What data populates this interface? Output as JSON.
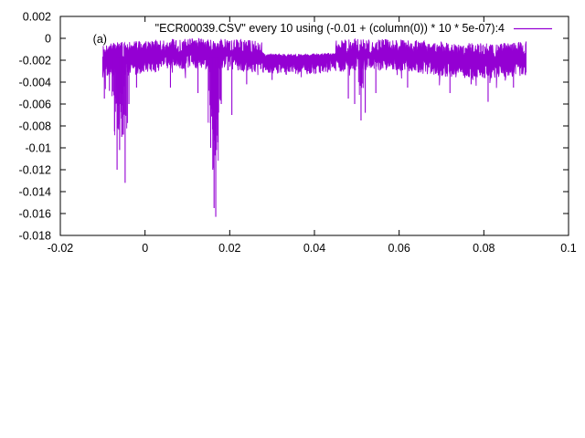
{
  "chart_data": {
    "type": "line",
    "title": "",
    "xlabel": "",
    "ylabel": "",
    "xlim": [
      -0.02,
      0.1
    ],
    "ylim": [
      -0.018,
      0.002
    ],
    "xticks": [
      -0.02,
      0,
      0.02,
      0.04,
      0.06,
      0.08,
      0.1
    ],
    "xtick_labels": [
      "-0.02",
      "0",
      "0.02",
      "0.04",
      "0.06",
      "0.08",
      "0.1"
    ],
    "yticks": [
      0.002,
      0,
      -0.002,
      -0.004,
      -0.006,
      -0.008,
      -0.01,
      -0.012,
      -0.014,
      -0.016,
      -0.018
    ],
    "ytick_labels": [
      "0.002",
      "0",
      "-0.002",
      "-0.004",
      "-0.006",
      "-0.008",
      "-0.01",
      "-0.012",
      "-0.014",
      "-0.016",
      "-0.018"
    ],
    "grid": false,
    "legend": {
      "placement": "top-right",
      "entries": [
        {
          "label": "\"ECR00039.CSV\" every 10 using (-0.01 + (column(0)) * 10 * 5e-07):4",
          "color": "#9400d3"
        }
      ]
    },
    "annotations": [
      {
        "text": "(a)",
        "x": -0.0123,
        "y": -4e-05
      }
    ],
    "series": [
      {
        "name": "\"ECR00039.CSV\" every 10 using (-0.01 + (column(0)) * 10 * 5e-07):4",
        "color": "#9400d3",
        "x_range": [
          -0.01,
          0.09
        ],
        "band_top": -0.0002,
        "band_bottom": -0.0032,
        "base_level": -0.0017,
        "spikes": [
          {
            "x": -0.0096,
            "y": -0.0055
          },
          {
            "x": -0.0084,
            "y": -0.0048
          },
          {
            "x": -0.0072,
            "y": -0.0085
          },
          {
            "x": -0.0066,
            "y": -0.012
          },
          {
            "x": -0.006,
            "y": -0.0102
          },
          {
            "x": -0.0055,
            "y": -0.009
          },
          {
            "x": -0.0047,
            "y": -0.0132
          },
          {
            "x": -0.0038,
            "y": -0.006
          },
          {
            "x": -0.002,
            "y": -0.0045
          },
          {
            "x": 0.006,
            "y": -0.0045
          },
          {
            "x": 0.0125,
            "y": -0.005
          },
          {
            "x": 0.0155,
            "y": -0.01
          },
          {
            "x": 0.016,
            "y": -0.012
          },
          {
            "x": 0.0163,
            "y": -0.0155
          },
          {
            "x": 0.0167,
            "y": -0.0163
          },
          {
            "x": 0.0172,
            "y": -0.0095
          },
          {
            "x": 0.018,
            "y": -0.006
          },
          {
            "x": 0.0205,
            "y": -0.007
          },
          {
            "x": 0.024,
            "y": -0.0042
          },
          {
            "x": 0.03,
            "y": -0.0038
          },
          {
            "x": 0.048,
            "y": -0.0055
          },
          {
            "x": 0.0495,
            "y": -0.006
          },
          {
            "x": 0.051,
            "y": -0.0075
          },
          {
            "x": 0.052,
            "y": -0.0068
          },
          {
            "x": 0.0545,
            "y": -0.005
          },
          {
            "x": 0.062,
            "y": -0.0045
          },
          {
            "x": 0.072,
            "y": -0.005
          },
          {
            "x": 0.077,
            "y": -0.0042
          },
          {
            "x": 0.081,
            "y": -0.0058
          },
          {
            "x": 0.087,
            "y": -0.0045
          }
        ]
      }
    ]
  }
}
